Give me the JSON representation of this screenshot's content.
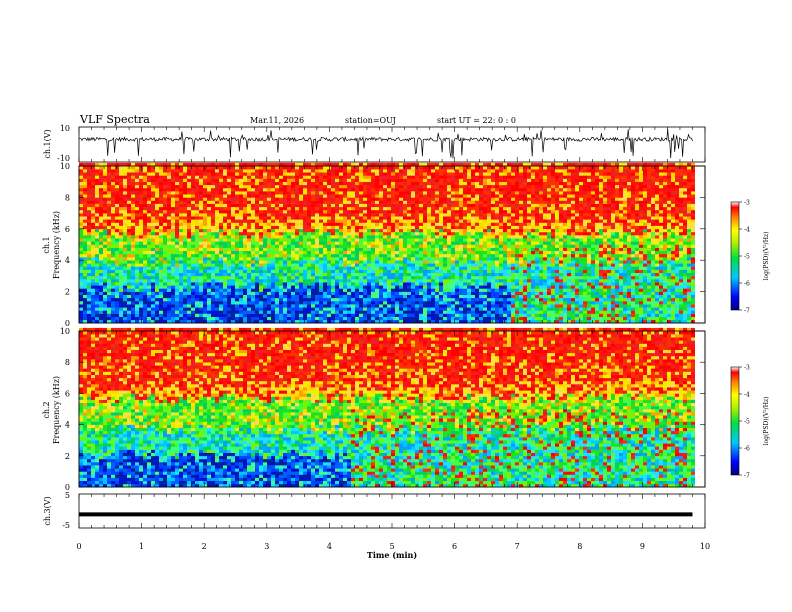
{
  "header": {
    "title": "VLF Spectra",
    "date": "Mar.11, 2026",
    "station": "station=OUJ",
    "start_ut": "start  UT =  22: 0  : 0"
  },
  "chart_data": [
    {
      "type": "line",
      "panel": "ch1-waveform",
      "ylabel": "ch.1(V)",
      "ylim": [
        -10,
        10
      ],
      "yticklabels": [
        "10",
        "-10"
      ],
      "description_values": {
        "baseline": 3,
        "spike_min": -8,
        "spike_max": 9
      },
      "x_end_min": 9.8
    },
    {
      "type": "heatmap",
      "panel": "ch1-spectrogram",
      "ylabel_line1": "ch.1",
      "ylabel_line2": "Frequency  (kHz)",
      "ylim": [
        0,
        10
      ],
      "yticks": [
        "0",
        "2",
        "4",
        "6",
        "8",
        "10"
      ],
      "colorbar": {
        "label": "log(PSD)(V²/Hz)",
        "range": [
          -7,
          -3
        ],
        "ticks": [
          "-3",
          "-4",
          "-5",
          "-6",
          "-7"
        ]
      },
      "layers_kHz": {
        "red_above": 6.5,
        "yellow_above": 5.6,
        "green_above": 3.8,
        "cyan_above": 2.2,
        "blue_band": [
          0,
          2.2
        ]
      },
      "change_time_min": 6.9
    },
    {
      "type": "heatmap",
      "panel": "ch2-spectrogram",
      "ylabel_line1": "ch.2",
      "ylabel_line2": "Frequency  (kHz)",
      "ylim": [
        0,
        10
      ],
      "yticks": [
        "0",
        "2",
        "4",
        "6",
        "8",
        "10"
      ],
      "colorbar": {
        "label": "log(PSD)(V²/Hz)",
        "range": [
          -7,
          -3
        ],
        "ticks": [
          "-3",
          "-4",
          "-5",
          "-6",
          "-7"
        ]
      },
      "layers_kHz": {
        "red_above": 6.5,
        "yellow_above": 5.6,
        "green_above": 3.6,
        "cyan_above": 2.0,
        "blue_band": [
          0,
          2.0
        ]
      },
      "change_time_min": 4.3
    },
    {
      "type": "line",
      "panel": "ch3-waveform",
      "ylabel": "ch.3(V)",
      "ylim": [
        -5,
        5
      ],
      "yticklabels": [
        "5",
        "-5"
      ],
      "constant_value": -1,
      "x_end_min": 9.8
    }
  ],
  "xaxis": {
    "label": "Time  (min)",
    "range": [
      0,
      10
    ],
    "ticks": [
      "0",
      "1",
      "2",
      "3",
      "4",
      "5",
      "6",
      "7",
      "8",
      "9",
      "10"
    ]
  }
}
